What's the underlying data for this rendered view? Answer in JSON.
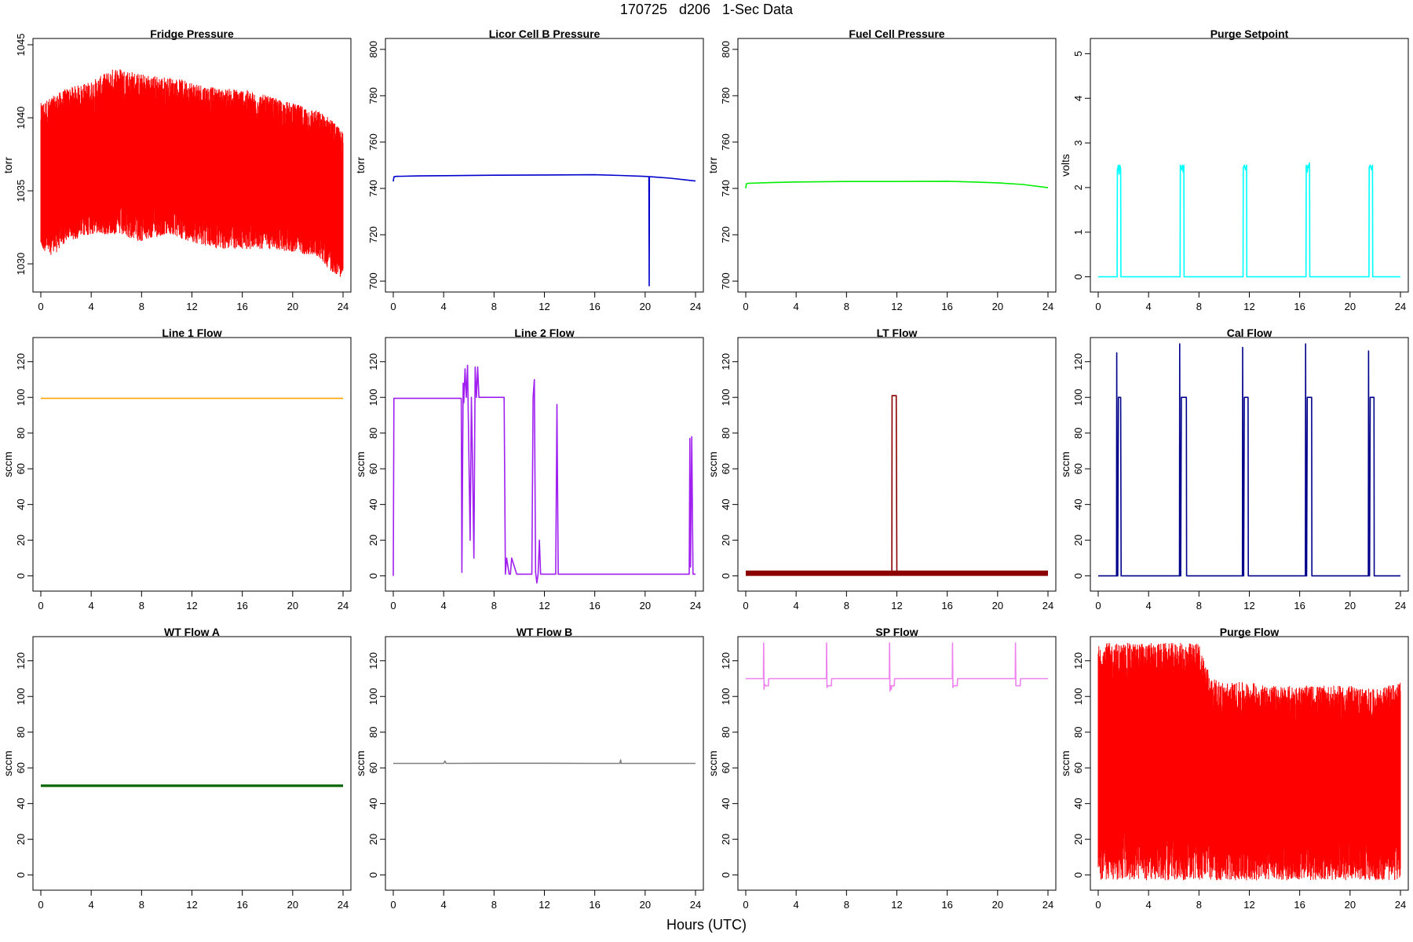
{
  "figure": {
    "title": "170725   d206   1-Sec Data",
    "xlabel": "Hours (UTC)"
  },
  "chart_data": [
    {
      "type": "line",
      "title": "Fridge Pressure",
      "ylabel": "torr",
      "color": "#ff0000",
      "xlim": [
        0,
        24
      ],
      "ylim": [
        1028.5,
        1045
      ],
      "xticks": [
        0,
        4,
        8,
        12,
        16,
        20,
        24
      ],
      "yticks": [
        1030,
        1035,
        1040,
        1045
      ],
      "noisy": true,
      "x": [
        0,
        1,
        2,
        4,
        6,
        8,
        10,
        12,
        14,
        16,
        18,
        20,
        22,
        23,
        24
      ],
      "y": [
        1036,
        1036.5,
        1036.8,
        1037,
        1037.2,
        1037.2,
        1037.1,
        1036.9,
        1036.8,
        1036.5,
        1036.3,
        1036,
        1035.5,
        1035,
        1034.5
      ],
      "ymin": [
        1031,
        1030.5,
        1031.5,
        1032,
        1032,
        1031.5,
        1032,
        1031.5,
        1031,
        1031,
        1031,
        1030.8,
        1030.5,
        1029.5,
        1029
      ],
      "ymax": [
        1041,
        1041.5,
        1042,
        1042.5,
        1043.5,
        1043,
        1042.8,
        1042.5,
        1042,
        1042,
        1041.5,
        1041,
        1040.5,
        1040,
        1039
      ]
    },
    {
      "type": "line",
      "title": "Licor Cell B Pressure",
      "ylabel": "torr",
      "color": "#0000cd",
      "xlim": [
        0,
        24
      ],
      "ylim": [
        698,
        802
      ],
      "xticks": [
        0,
        4,
        8,
        12,
        16,
        20,
        24
      ],
      "yticks": [
        700,
        720,
        740,
        760,
        780,
        800
      ],
      "x": [
        0,
        0.05,
        0.2,
        2,
        4,
        8,
        12,
        16,
        18,
        20,
        20.3,
        20.32,
        20.34,
        20.6,
        22,
        24
      ],
      "y": [
        743,
        745,
        745.2,
        745.4,
        745.5,
        745.7,
        745.8,
        745.9,
        745.6,
        745.2,
        745.1,
        698,
        745.1,
        745,
        744.4,
        743.2
      ]
    },
    {
      "type": "line",
      "title": "Fuel Cell Pressure",
      "ylabel": "torr",
      "color": "#00ee00",
      "xlim": [
        0,
        24
      ],
      "ylim": [
        698,
        802
      ],
      "xticks": [
        0,
        4,
        8,
        12,
        16,
        20,
        24
      ],
      "yticks": [
        700,
        720,
        740,
        760,
        780,
        800
      ],
      "x": [
        0,
        0.05,
        0.2,
        2,
        4,
        8,
        12,
        16,
        18,
        20,
        22,
        24
      ],
      "y": [
        740,
        742,
        742.2,
        742.5,
        742.8,
        743,
        743,
        743.1,
        742.8,
        742.4,
        741.7,
        740.3
      ]
    },
    {
      "type": "line",
      "title": "Purge Setpoint",
      "ylabel": "volts",
      "color": "#00ffff",
      "xlim": [
        0,
        24
      ],
      "ylim": [
        -0.2,
        5.2
      ],
      "xticks": [
        0,
        4,
        8,
        12,
        16,
        20,
        24
      ],
      "yticks": [
        0,
        1,
        2,
        3,
        4,
        5
      ],
      "x": [
        0,
        1.5,
        1.52,
        1.6,
        1.65,
        1.72,
        1.78,
        1.8,
        6.5,
        6.52,
        6.6,
        6.68,
        6.74,
        6.8,
        6.82,
        11.5,
        11.52,
        11.6,
        11.7,
        11.78,
        11.8,
        16.5,
        16.52,
        16.6,
        16.66,
        16.72,
        16.78,
        16.8,
        21.5,
        21.52,
        21.6,
        21.7,
        21.78,
        21.8,
        24
      ],
      "y": [
        0,
        0,
        2.4,
        2.5,
        2.3,
        2.5,
        2.4,
        0,
        0,
        2.5,
        2.4,
        2.5,
        2.35,
        2.5,
        0,
        0,
        2.45,
        2.5,
        2.4,
        2.5,
        0,
        0,
        2.5,
        2.35,
        2.5,
        2.45,
        2.55,
        0,
        0,
        2.45,
        2.5,
        2.4,
        2.5,
        0,
        0
      ]
    },
    {
      "type": "line",
      "title": "Line 1 Flow",
      "ylabel": "sccm",
      "color": "#ffa500",
      "xlim": [
        0,
        24
      ],
      "ylim": [
        -5,
        130
      ],
      "xticks": [
        0,
        4,
        8,
        12,
        16,
        20,
        24
      ],
      "yticks": [
        0,
        20,
        40,
        60,
        80,
        100,
        120
      ],
      "x": [
        0,
        24
      ],
      "y": [
        99.5,
        99.5
      ]
    },
    {
      "type": "line",
      "title": "Line 2 Flow",
      "ylabel": "sccm",
      "color": "#a020f0",
      "xlim": [
        0,
        24
      ],
      "ylim": [
        -5,
        130
      ],
      "xticks": [
        0,
        4,
        8,
        12,
        16,
        20,
        24
      ],
      "yticks": [
        0,
        20,
        40,
        60,
        80,
        100,
        120
      ],
      "x": [
        0,
        0.05,
        0.1,
        5.4,
        5.45,
        5.55,
        5.6,
        5.7,
        5.8,
        5.9,
        6.1,
        6.2,
        6.3,
        6.4,
        6.5,
        6.6,
        6.7,
        6.8,
        6.9,
        7.0,
        7.2,
        7.4,
        7.6,
        7.8,
        8.0,
        8.8,
        8.9,
        9.0,
        9.2,
        9.3,
        9.4,
        9.8,
        9.9,
        10.0,
        11.0,
        11.1,
        11.2,
        11.3,
        11.4,
        11.5,
        11.6,
        11.7,
        11.8,
        11.9,
        12.0,
        12.9,
        13.0,
        13.1,
        13.2,
        14,
        18,
        22,
        23.5,
        23.55,
        23.6,
        23.7,
        23.8,
        23.85,
        24
      ],
      "y": [
        0,
        99.5,
        99.5,
        99.5,
        2,
        108,
        97,
        116,
        100,
        118,
        20,
        100,
        60,
        10,
        117,
        100,
        117,
        100,
        100,
        100,
        100,
        100,
        100,
        100,
        100,
        100,
        1,
        10,
        1,
        1,
        10,
        1,
        1,
        1,
        1,
        100,
        110,
        2,
        -4,
        1,
        20,
        1,
        1,
        1,
        1,
        1,
        96,
        1,
        1,
        1,
        1,
        1,
        1,
        77,
        5,
        78,
        1,
        1,
        1
      ]
    },
    {
      "type": "line",
      "title": "LT Flow",
      "ylabel": "sccm",
      "color": "#8b0000",
      "xlim": [
        0,
        24
      ],
      "ylim": [
        -5,
        130
      ],
      "xticks": [
        0,
        4,
        8,
        12,
        16,
        20,
        24
      ],
      "yticks": [
        0,
        20,
        40,
        60,
        80,
        100,
        120
      ],
      "band": [
        0,
        3
      ],
      "x": [
        0,
        11.6,
        11.62,
        11.7,
        11.8,
        11.9,
        11.95,
        12.0,
        12.02,
        24
      ],
      "y": [
        1.5,
        1.5,
        101,
        101,
        101,
        101,
        101,
        1.5,
        1.5,
        1.5
      ]
    },
    {
      "type": "line",
      "title": "Cal Flow",
      "ylabel": "sccm",
      "color": "#00008b",
      "xlim": [
        0,
        24
      ],
      "ylim": [
        -5,
        130
      ],
      "xticks": [
        0,
        4,
        8,
        12,
        16,
        20,
        24
      ],
      "yticks": [
        0,
        20,
        40,
        60,
        80,
        100,
        120
      ],
      "x": [
        0,
        1.45,
        1.47,
        1.5,
        1.55,
        1.6,
        1.62,
        1.7,
        1.72,
        1.74,
        1.76,
        1.78,
        1.82,
        1.84,
        6.45,
        6.47,
        6.5,
        6.55,
        6.6,
        6.62,
        7.0,
        7.02,
        7.04,
        11.45,
        11.47,
        11.5,
        11.55,
        11.6,
        11.62,
        11.9,
        11.92,
        11.94,
        16.45,
        16.47,
        16.5,
        16.55,
        16.6,
        16.62,
        16.95,
        16.97,
        16.99,
        21.45,
        21.47,
        21.5,
        21.55,
        21.6,
        21.62,
        21.9,
        21.92,
        21.94,
        24
      ],
      "y": [
        0,
        0,
        125,
        0,
        0,
        100,
        100,
        100,
        100,
        100,
        100,
        100,
        0,
        0,
        0,
        130,
        0,
        0,
        100,
        100,
        100,
        0,
        0,
        0,
        128,
        0,
        0,
        100,
        100,
        100,
        0,
        0,
        0,
        130,
        0,
        0,
        100,
        100,
        100,
        0,
        0,
        0,
        126,
        0,
        0,
        100,
        100,
        100,
        0,
        0,
        0
      ]
    },
    {
      "type": "line",
      "title": "WT Flow A",
      "ylabel": "sccm",
      "color": "#006400",
      "xlim": [
        0,
        24
      ],
      "ylim": [
        -5,
        130
      ],
      "xticks": [
        0,
        4,
        8,
        12,
        16,
        20,
        24
      ],
      "yticks": [
        0,
        20,
        40,
        60,
        80,
        100,
        120
      ],
      "band": [
        49.3,
        50.7
      ],
      "x": [
        0,
        24
      ],
      "y": [
        50,
        50
      ]
    },
    {
      "type": "line",
      "title": "WT Flow B",
      "ylabel": "sccm",
      "color": "#808080",
      "xlim": [
        0,
        24
      ],
      "ylim": [
        -5,
        130
      ],
      "xticks": [
        0,
        4,
        8,
        12,
        16,
        20,
        24
      ],
      "yticks": [
        0,
        20,
        40,
        60,
        80,
        100,
        120
      ],
      "x": [
        0,
        4,
        4.1,
        4.2,
        8,
        12,
        16,
        18,
        18.05,
        18.1,
        20,
        24
      ],
      "y": [
        62.5,
        62.5,
        63.8,
        62.5,
        62.6,
        62.6,
        62.5,
        62.5,
        64.5,
        62.5,
        62.5,
        62.5
      ]
    },
    {
      "type": "line",
      "title": "SP Flow",
      "ylabel": "sccm",
      "color": "#ee82ee",
      "xlim": [
        0,
        24
      ],
      "ylim": [
        -5,
        130
      ],
      "xticks": [
        0,
        4,
        8,
        12,
        16,
        20,
        24
      ],
      "yticks": [
        0,
        20,
        40,
        60,
        80,
        100,
        120
      ],
      "x": [
        0,
        1.4,
        1.42,
        1.45,
        1.5,
        1.52,
        1.55,
        1.8,
        1.82,
        6.4,
        6.42,
        6.45,
        6.5,
        6.52,
        6.8,
        6.82,
        11.4,
        11.42,
        11.45,
        11.5,
        11.55,
        11.6,
        11.8,
        11.82,
        16.4,
        16.42,
        16.45,
        16.5,
        16.55,
        16.8,
        16.82,
        21.4,
        21.42,
        21.45,
        21.5,
        21.55,
        21.8,
        21.82,
        24
      ],
      "y": [
        110,
        110,
        130,
        104,
        107,
        106,
        106,
        106,
        110,
        110,
        130,
        105,
        106,
        106,
        106,
        110,
        110,
        130,
        103,
        106,
        104,
        106,
        106,
        110,
        110,
        130,
        105,
        106,
        106,
        106,
        110,
        110,
        130,
        106,
        106,
        106,
        106,
        110,
        110
      ]
    },
    {
      "type": "line",
      "title": "Purge Flow",
      "ylabel": "sccm",
      "color": "#ff0000",
      "xlim": [
        0,
        24
      ],
      "ylim": [
        -5,
        130
      ],
      "xticks": [
        0,
        4,
        8,
        12,
        16,
        20,
        24
      ],
      "yticks": [
        0,
        20,
        40,
        60,
        80,
        100,
        120
      ],
      "noisy": true,
      "x": [
        0,
        1,
        2,
        3,
        4,
        5,
        6,
        7,
        8,
        9,
        10,
        12,
        14,
        16,
        18,
        20,
        22,
        24
      ],
      "y": [
        65,
        66,
        66,
        66,
        66,
        66,
        66,
        66,
        66,
        55,
        52,
        52,
        52,
        52,
        52,
        52,
        52,
        52
      ],
      "ymin": [
        -3,
        -3,
        -3,
        -3,
        -3,
        -3,
        -3,
        -3,
        -3,
        -3,
        -3,
        -3,
        -3,
        -3,
        -3,
        -3,
        -3,
        -3
      ],
      "ymax": [
        130,
        130,
        130,
        130,
        130,
        130,
        130,
        130,
        130,
        110,
        108,
        108,
        106,
        106,
        106,
        106,
        104,
        108
      ]
    }
  ]
}
